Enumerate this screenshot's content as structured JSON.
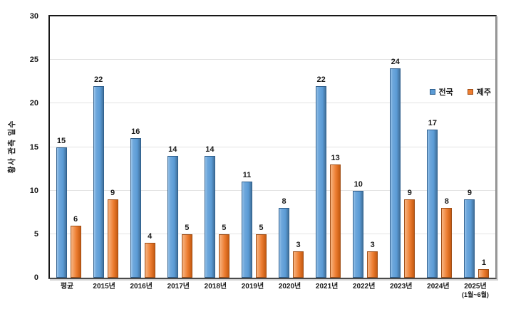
{
  "chart_data": {
    "type": "bar",
    "title": "",
    "xlabel": "",
    "ylabel": "황사 관측 일수",
    "ylim": [
      0,
      30
    ],
    "ytick_step": 5,
    "ytick_labels": [
      "0",
      "5",
      "10",
      "15",
      "20",
      "25",
      "30"
    ],
    "grid": true,
    "legend_position": "inside-top-right",
    "categories": [
      "평균",
      "2015년",
      "2016년",
      "2017년",
      "2018년",
      "2019년",
      "2020년",
      "2021년",
      "2022년",
      "2023년",
      "2024년",
      "2025년"
    ],
    "category_subnotes": [
      "",
      "",
      "",
      "",
      "",
      "",
      "",
      "",
      "",
      "",
      "",
      "(1월~6월)"
    ],
    "series": [
      {
        "name": "전국",
        "color": "#5B9BD5",
        "border_color": "#2E5E8C",
        "values": [
          15,
          22,
          16,
          14,
          14,
          11,
          8,
          22,
          10,
          24,
          17,
          9
        ]
      },
      {
        "name": "제주",
        "color": "#ED7D31",
        "border_color": "#A04E16",
        "values": [
          6,
          9,
          4,
          5,
          5,
          5,
          3,
          13,
          3,
          9,
          8,
          1
        ]
      }
    ],
    "value_labels_shown": true,
    "grid_color": "#E3E3E3",
    "axis_color": "#171717",
    "text_color": "#1A1A1A"
  }
}
